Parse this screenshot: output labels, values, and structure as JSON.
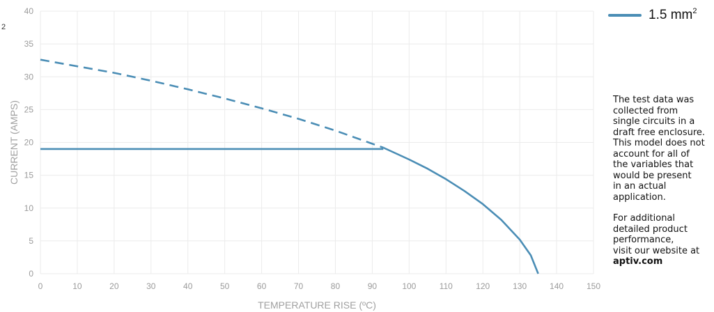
{
  "stray_mark": "2",
  "notes": {
    "paragraph1": [
      "The test data was",
      "collected from",
      "single circuits in a",
      "draft free enclosure.",
      "This model does not",
      "account for all of",
      "the variables that",
      "would be present",
      "in an actual",
      "application."
    ],
    "paragraph2": [
      "For additional",
      "detailed product",
      "performance,",
      "visit our website at"
    ],
    "website": "aptiv.com"
  },
  "chart_data": {
    "type": "line",
    "title": "",
    "xlabel": "TEMPERATURE RISE (ºC)",
    "ylabel": "CURRENT (AMPS)",
    "xlim": [
      0,
      150
    ],
    "ylim": [
      0,
      40
    ],
    "xticks": [
      0,
      10,
      20,
      30,
      40,
      50,
      60,
      70,
      80,
      90,
      100,
      110,
      120,
      130,
      140,
      150
    ],
    "yticks": [
      0,
      5,
      10,
      15,
      20,
      25,
      30,
      35,
      40
    ],
    "grid": true,
    "legend_position": "top-right",
    "series": [
      {
        "name": "1.5 mm",
        "name_superscript": "2",
        "color": "#4a8db5",
        "segments": [
          {
            "style": "dashed",
            "x": [
              0,
              10,
              20,
              30,
              40,
              50,
              60,
              70,
              80,
              90,
              93
            ],
            "y": [
              32.6,
              31.6,
              30.6,
              29.4,
              28.1,
              26.7,
              25.2,
              23.6,
              21.8,
              19.8,
              19.2
            ]
          },
          {
            "style": "solid",
            "x": [
              0,
              93
            ],
            "y": [
              19.0,
              19.0
            ]
          },
          {
            "style": "solid",
            "x": [
              93,
              100,
              105,
              110,
              115,
              120,
              125,
              130,
              133,
              135
            ],
            "y": [
              19.2,
              17.4,
              16.0,
              14.4,
              12.6,
              10.6,
              8.2,
              5.2,
              2.8,
              0
            ]
          }
        ]
      }
    ]
  }
}
